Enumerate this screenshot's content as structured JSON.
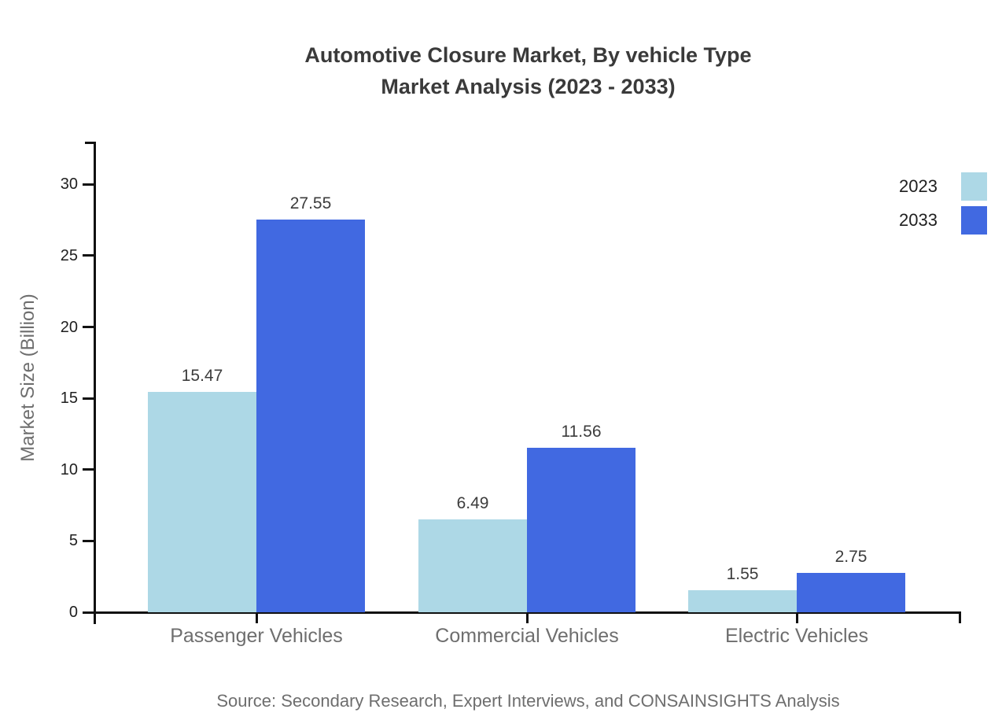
{
  "title": {
    "line1": "Automotive Closure Market, By vehicle Type",
    "line2": "Market Analysis (2023 - 2033)"
  },
  "source": "Source: Secondary Research, Expert Interviews, and CONSAINSIGHTS Analysis",
  "chart_data": {
    "type": "bar",
    "title": "Automotive Closure Market, By vehicle Type Market Analysis (2023 - 2033)",
    "categories": [
      "Passenger Vehicles",
      "Commercial Vehicles",
      "Electric Vehicles"
    ],
    "series": [
      {
        "name": "2023",
        "color": "#ADD8E6",
        "values": [
          15.47,
          6.49,
          1.55
        ]
      },
      {
        "name": "2033",
        "color": "#4169E1",
        "values": [
          27.55,
          11.56,
          2.75
        ]
      }
    ],
    "xlabel": "",
    "ylabel": "Market Size (Billion)",
    "ylim": [
      0,
      33
    ],
    "yticks": [
      0,
      5,
      10,
      15,
      20,
      25,
      30
    ],
    "grid": false,
    "value_labels": true,
    "legend_position": "top-right"
  }
}
